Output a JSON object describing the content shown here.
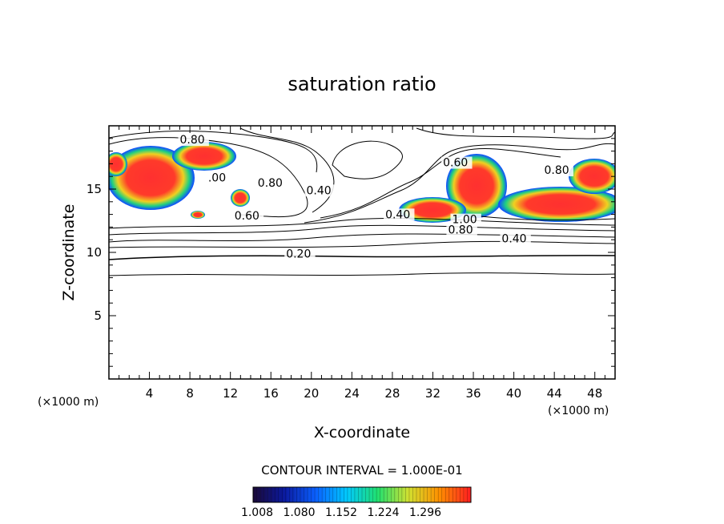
{
  "chart_data": {
    "type": "heatmap",
    "title": "saturation ratio",
    "xlabel": "X-coordinate",
    "ylabel": "Z-coordinate",
    "x_unit_left": "(×1000 m)",
    "x_unit_right": "(×1000 m)",
    "xlim": [
      0,
      50
    ],
    "ylim": [
      0,
      20
    ],
    "x_ticks": [
      "4",
      "8",
      "12",
      "16",
      "20",
      "24",
      "28",
      "32",
      "36",
      "40",
      "44",
      "48"
    ],
    "y_ticks": [
      "5",
      "10",
      "15"
    ],
    "contour_interval_text": "CONTOUR INTERVAL = 1.000E-01",
    "contour_labels": [
      {
        "text": "0.80",
        "x": 7.0,
        "z": 18.6
      },
      {
        "text": ".00",
        "x": 9.8,
        "z": 15.6
      },
      {
        "text": "0.80",
        "x": 14.7,
        "z": 15.2
      },
      {
        "text": "0.40",
        "x": 19.5,
        "z": 14.6
      },
      {
        "text": "0.60",
        "x": 12.4,
        "z": 12.6
      },
      {
        "text": "0.40",
        "x": 27.3,
        "z": 12.7
      },
      {
        "text": "1.00",
        "x": 33.9,
        "z": 12.3
      },
      {
        "text": "0.80",
        "x": 33.5,
        "z": 11.5
      },
      {
        "text": "0.40",
        "x": 38.8,
        "z": 10.8
      },
      {
        "text": "0.20",
        "x": 17.5,
        "z": 9.6
      },
      {
        "text": "0.80",
        "x": 43.0,
        "z": 16.2
      },
      {
        "text": "0.60",
        "x": 33.0,
        "z": 16.8
      }
    ],
    "colorbar": {
      "colors": [
        "#1a0a3a",
        "#0a1aa0",
        "#0a60ff",
        "#00c8ff",
        "#20e070",
        "#d0e030",
        "#ff9000",
        "#ff2020"
      ],
      "tick_labels": [
        "1.008",
        "1.080",
        "1.152",
        "1.224",
        "1.296"
      ]
    }
  }
}
